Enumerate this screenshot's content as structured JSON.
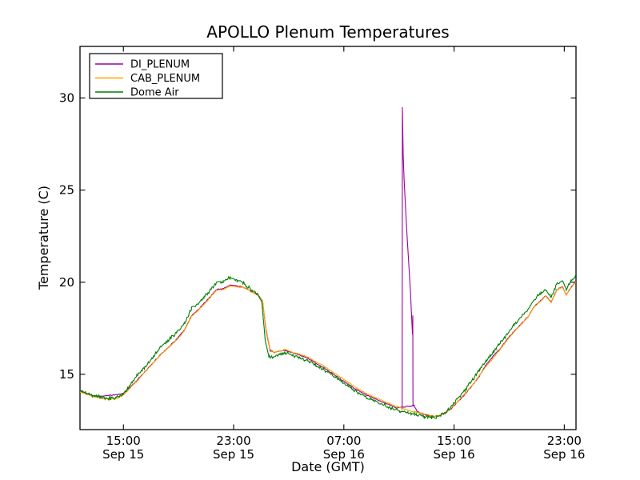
{
  "figure": {
    "background": "#ffffff"
  },
  "chart_data": {
    "type": "line",
    "title": "APOLLO Plenum Temperatures",
    "xlabel": "Date (GMT)",
    "ylabel": "Temperature (C)",
    "xlim_hours": [
      0,
      36
    ],
    "ylim": [
      12,
      32.8
    ],
    "grid": false,
    "yticks": [
      15,
      20,
      25,
      30
    ],
    "xticks": [
      {
        "t": 3.15,
        "time": "15:00",
        "date": "Sep 15"
      },
      {
        "t": 11.15,
        "time": "23:00",
        "date": "Sep 15"
      },
      {
        "t": 19.15,
        "time": "07:00",
        "date": "Sep 16"
      },
      {
        "t": 27.15,
        "time": "15:00",
        "date": "Sep 16"
      },
      {
        "t": 35.15,
        "time": "23:00",
        "date": "Sep 16"
      }
    ],
    "legend": {
      "position": "upper-left",
      "entries": [
        "DI_PLENUM",
        "CAB_PLENUM",
        "Dome Air"
      ]
    },
    "series": [
      {
        "name": "DI_PLENUM",
        "color": "#9b009b",
        "noise": 0.035,
        "points": [
          [
            0,
            14.1
          ],
          [
            0.4,
            14.0
          ],
          [
            0.9,
            13.85
          ],
          [
            1.5,
            13.8
          ],
          [
            2.1,
            13.85
          ],
          [
            2.7,
            13.9
          ],
          [
            3.1,
            13.95
          ],
          [
            3.5,
            14.2
          ],
          [
            4.1,
            14.65
          ],
          [
            4.7,
            15.12
          ],
          [
            5.3,
            15.62
          ],
          [
            5.9,
            16.12
          ],
          [
            6.5,
            16.52
          ],
          [
            7.0,
            16.9
          ],
          [
            7.6,
            17.42
          ],
          [
            8.1,
            18.18
          ],
          [
            8.5,
            18.45
          ],
          [
            9.0,
            18.85
          ],
          [
            9.5,
            19.25
          ],
          [
            9.9,
            19.6
          ],
          [
            10.4,
            19.65
          ],
          [
            10.9,
            19.85
          ],
          [
            11.4,
            19.8
          ],
          [
            11.9,
            19.72
          ],
          [
            12.4,
            19.52
          ],
          [
            12.9,
            19.32
          ],
          [
            13.25,
            19.0
          ],
          [
            13.5,
            17.4
          ],
          [
            13.8,
            16.3
          ],
          [
            14.1,
            16.18
          ],
          [
            14.4,
            16.25
          ],
          [
            14.9,
            16.3
          ],
          [
            15.4,
            16.18
          ],
          [
            15.9,
            16.05
          ],
          [
            16.5,
            15.88
          ],
          [
            17.1,
            15.62
          ],
          [
            17.7,
            15.35
          ],
          [
            18.3,
            15.05
          ],
          [
            18.9,
            14.75
          ],
          [
            19.5,
            14.45
          ],
          [
            20.1,
            14.15
          ],
          [
            20.8,
            13.88
          ],
          [
            21.4,
            13.68
          ],
          [
            22.0,
            13.48
          ],
          [
            22.6,
            13.3
          ],
          [
            23.0,
            13.18
          ],
          [
            23.5,
            13.22
          ],
          [
            24.0,
            13.28
          ],
          [
            24.25,
            13.32
          ],
          [
            24.45,
            13.0
          ],
          [
            24.7,
            12.88
          ],
          [
            25.1,
            12.8
          ],
          [
            25.6,
            12.72
          ],
          [
            26.0,
            12.74
          ],
          [
            26.5,
            12.88
          ],
          [
            27.0,
            13.17
          ],
          [
            27.5,
            13.57
          ],
          [
            28.0,
            13.97
          ],
          [
            28.5,
            14.42
          ],
          [
            29.0,
            14.92
          ],
          [
            29.5,
            15.55
          ],
          [
            30.0,
            16.0
          ],
          [
            30.5,
            16.4
          ],
          [
            31.0,
            16.9
          ],
          [
            31.5,
            17.32
          ],
          [
            32.0,
            17.72
          ],
          [
            32.5,
            18.12
          ],
          [
            33.0,
            18.72
          ],
          [
            33.4,
            18.97
          ],
          [
            33.8,
            19.27
          ],
          [
            34.2,
            18.92
          ],
          [
            34.6,
            19.57
          ],
          [
            35.0,
            19.77
          ],
          [
            35.3,
            19.32
          ],
          [
            35.6,
            19.67
          ],
          [
            35.9,
            19.97
          ],
          [
            36.0,
            20.0
          ]
        ],
        "spike_points": [
          [
            23.38,
            13.1
          ],
          [
            23.4,
            29.5
          ],
          [
            23.46,
            26.9
          ],
          [
            23.52,
            25.6
          ],
          [
            23.63,
            24.0
          ],
          [
            23.75,
            22.4
          ],
          [
            23.87,
            20.9
          ],
          [
            23.99,
            19.4
          ],
          [
            24.05,
            18.4
          ],
          [
            24.1,
            17.6
          ],
          [
            24.14,
            17.15
          ],
          [
            24.155,
            18.2
          ],
          [
            24.165,
            13.6
          ],
          [
            24.18,
            13.25
          ]
        ]
      },
      {
        "name": "CAB_PLENUM",
        "color": "#ffa500",
        "noise": 0.035,
        "points": [
          [
            0,
            14.05
          ],
          [
            0.4,
            13.95
          ],
          [
            0.9,
            13.8
          ],
          [
            1.5,
            13.7
          ],
          [
            2.1,
            13.65
          ],
          [
            2.7,
            13.7
          ],
          [
            3.1,
            13.85
          ],
          [
            3.5,
            14.15
          ],
          [
            4.1,
            14.6
          ],
          [
            4.7,
            15.1
          ],
          [
            5.3,
            15.6
          ],
          [
            5.9,
            16.1
          ],
          [
            6.5,
            16.5
          ],
          [
            7.0,
            16.85
          ],
          [
            7.6,
            17.4
          ],
          [
            8.1,
            18.15
          ],
          [
            8.5,
            18.4
          ],
          [
            9.0,
            18.8
          ],
          [
            9.5,
            19.2
          ],
          [
            9.9,
            19.55
          ],
          [
            10.4,
            19.6
          ],
          [
            10.9,
            19.8
          ],
          [
            11.4,
            19.75
          ],
          [
            11.9,
            19.7
          ],
          [
            12.4,
            19.5
          ],
          [
            12.9,
            19.3
          ],
          [
            13.25,
            19.0
          ],
          [
            13.5,
            17.5
          ],
          [
            13.8,
            16.35
          ],
          [
            14.1,
            16.2
          ],
          [
            14.4,
            16.25
          ],
          [
            14.9,
            16.35
          ],
          [
            15.4,
            16.2
          ],
          [
            15.9,
            16.1
          ],
          [
            16.5,
            15.95
          ],
          [
            17.1,
            15.7
          ],
          [
            17.7,
            15.45
          ],
          [
            18.3,
            15.15
          ],
          [
            18.9,
            14.85
          ],
          [
            19.5,
            14.55
          ],
          [
            20.1,
            14.25
          ],
          [
            20.8,
            13.95
          ],
          [
            21.4,
            13.75
          ],
          [
            22.0,
            13.55
          ],
          [
            22.6,
            13.35
          ],
          [
            23.2,
            13.2
          ],
          [
            23.8,
            13.05
          ],
          [
            24.4,
            12.95
          ],
          [
            25.0,
            12.85
          ],
          [
            25.7,
            12.72
          ],
          [
            26.1,
            12.76
          ],
          [
            26.5,
            12.9
          ],
          [
            27.0,
            13.2
          ],
          [
            27.5,
            13.6
          ],
          [
            28.0,
            14.0
          ],
          [
            28.5,
            14.45
          ],
          [
            29.0,
            14.95
          ],
          [
            29.5,
            15.45
          ],
          [
            30.0,
            15.9
          ],
          [
            30.5,
            16.35
          ],
          [
            31.0,
            16.85
          ],
          [
            31.5,
            17.3
          ],
          [
            32.0,
            17.7
          ],
          [
            32.5,
            18.1
          ],
          [
            33.0,
            18.7
          ],
          [
            33.4,
            18.95
          ],
          [
            33.8,
            19.25
          ],
          [
            34.2,
            18.9
          ],
          [
            34.6,
            19.55
          ],
          [
            35.0,
            19.75
          ],
          [
            35.3,
            19.3
          ],
          [
            35.6,
            19.65
          ],
          [
            35.9,
            19.95
          ],
          [
            36.0,
            20.0
          ]
        ]
      },
      {
        "name": "Dome Air",
        "color": "#007f00",
        "noise": 0.11,
        "points": [
          [
            0,
            14.1
          ],
          [
            0.4,
            14.0
          ],
          [
            0.9,
            13.85
          ],
          [
            1.5,
            13.75
          ],
          [
            2.1,
            13.7
          ],
          [
            2.7,
            13.75
          ],
          [
            3.1,
            13.9
          ],
          [
            3.5,
            14.3
          ],
          [
            4.1,
            14.9
          ],
          [
            4.7,
            15.4
          ],
          [
            5.3,
            15.95
          ],
          [
            5.9,
            16.5
          ],
          [
            6.5,
            16.9
          ],
          [
            7.0,
            17.25
          ],
          [
            7.6,
            17.8
          ],
          [
            8.1,
            18.6
          ],
          [
            8.5,
            18.8
          ],
          [
            9.0,
            19.2
          ],
          [
            9.5,
            19.6
          ],
          [
            9.9,
            20.0
          ],
          [
            10.4,
            20.05
          ],
          [
            10.9,
            20.25
          ],
          [
            11.4,
            20.1
          ],
          [
            11.9,
            19.95
          ],
          [
            12.4,
            19.6
          ],
          [
            12.9,
            19.35
          ],
          [
            13.2,
            18.9
          ],
          [
            13.45,
            16.8
          ],
          [
            13.7,
            16.0
          ],
          [
            14.0,
            15.9
          ],
          [
            14.4,
            16.05
          ],
          [
            14.9,
            16.15
          ],
          [
            15.4,
            16.05
          ],
          [
            15.9,
            15.9
          ],
          [
            16.5,
            15.75
          ],
          [
            17.1,
            15.5
          ],
          [
            17.7,
            15.25
          ],
          [
            18.3,
            14.95
          ],
          [
            18.9,
            14.65
          ],
          [
            19.5,
            14.35
          ],
          [
            20.1,
            14.05
          ],
          [
            20.8,
            13.75
          ],
          [
            21.4,
            13.55
          ],
          [
            22.0,
            13.35
          ],
          [
            22.6,
            13.15
          ],
          [
            23.2,
            13.0
          ],
          [
            23.8,
            12.9
          ],
          [
            24.4,
            12.8
          ],
          [
            25.0,
            12.7
          ],
          [
            25.5,
            12.65
          ],
          [
            26.0,
            12.7
          ],
          [
            26.5,
            12.9
          ],
          [
            27.0,
            13.3
          ],
          [
            27.5,
            13.75
          ],
          [
            28.0,
            14.2
          ],
          [
            28.5,
            14.7
          ],
          [
            29.0,
            15.25
          ],
          [
            29.5,
            15.75
          ],
          [
            30.0,
            16.2
          ],
          [
            30.5,
            16.7
          ],
          [
            31.0,
            17.2
          ],
          [
            31.5,
            17.7
          ],
          [
            32.0,
            18.1
          ],
          [
            32.5,
            18.5
          ],
          [
            33.0,
            19.1
          ],
          [
            33.4,
            19.35
          ],
          [
            33.8,
            19.6
          ],
          [
            34.2,
            19.2
          ],
          [
            34.6,
            19.9
          ],
          [
            35.0,
            20.1
          ],
          [
            35.3,
            19.6
          ],
          [
            35.6,
            20.0
          ],
          [
            35.9,
            20.3
          ],
          [
            36.0,
            20.4
          ]
        ]
      }
    ]
  }
}
